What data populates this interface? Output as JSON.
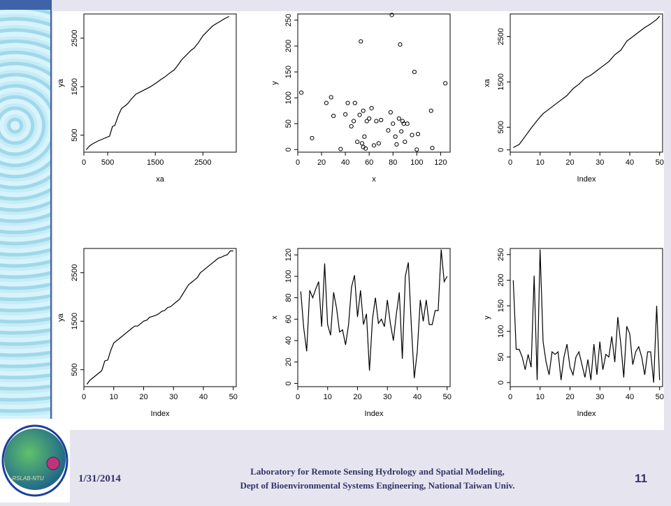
{
  "footer": {
    "date": "1/31/2014",
    "lab_line1": "Laboratory for Remote Sensing Hydrology and Spatial Modeling,",
    "lab_line2": "Dept of Bioenvironmental Systems Engineering, National Taiwan Univ.",
    "page_number": "11",
    "logo_text": "RSLAB-NTU"
  },
  "colors": {
    "logo_outer": "#1a3f9e",
    "logo_inner": "#2fa86a",
    "logo_dot": "#c0327e",
    "text": "#333366"
  },
  "chart_data": [
    {
      "type": "line",
      "xlabel": "xa",
      "ylabel": "ya",
      "xlim": [
        0,
        3200
      ],
      "ylim": [
        150,
        3000
      ],
      "xticks": [
        0,
        500,
        1500,
        2500
      ],
      "yticks": [
        500,
        1500,
        2500
      ],
      "x": [
        50,
        120,
        200,
        300,
        420,
        540,
        600,
        650,
        720,
        790,
        860,
        920,
        1000,
        1100,
        1200,
        1300,
        1400,
        1520,
        1620,
        1700,
        1800,
        1900,
        1980,
        2050,
        2150,
        2250,
        2320,
        2400,
        2500,
        2600,
        2700,
        2780,
        2870,
        2950,
        3050
      ],
      "y": [
        200,
        280,
        330,
        380,
        430,
        480,
        680,
        700,
        900,
        1050,
        1100,
        1150,
        1250,
        1350,
        1400,
        1450,
        1500,
        1580,
        1650,
        1700,
        1780,
        1850,
        1950,
        2050,
        2150,
        2250,
        2300,
        2400,
        2550,
        2650,
        2750,
        2800,
        2850,
        2900,
        2950
      ]
    },
    {
      "type": "scatter",
      "xlabel": "x",
      "ylabel": "y",
      "xlim": [
        0,
        128
      ],
      "ylim": [
        -5,
        262
      ],
      "xticks": [
        0,
        20,
        40,
        60,
        80,
        100,
        120
      ],
      "yticks": [
        0,
        50,
        100,
        150,
        200,
        250
      ],
      "x": [
        3,
        12,
        24,
        28,
        30,
        36,
        40,
        42,
        45,
        47,
        48,
        50,
        52,
        53,
        54,
        55,
        55,
        56,
        57,
        58,
        60,
        62,
        64,
        66,
        68,
        70,
        76,
        78,
        79,
        80,
        82,
        83,
        85,
        86,
        87,
        88,
        89,
        90,
        92,
        96,
        98,
        100,
        101,
        112,
        113,
        124
      ],
      "y": [
        110,
        22,
        90,
        101,
        65,
        1,
        68,
        90,
        45,
        55,
        90,
        15,
        67,
        209,
        12,
        5,
        75,
        25,
        2,
        55,
        60,
        80,
        8,
        55,
        12,
        57,
        37,
        72,
        260,
        50,
        25,
        10,
        60,
        203,
        35,
        55,
        50,
        15,
        50,
        28,
        150,
        0,
        30,
        75,
        3,
        128
      ]
    },
    {
      "type": "line",
      "xlabel": "Index",
      "ylabel": "xa",
      "xlim": [
        0,
        51
      ],
      "ylim": [
        -50,
        3000
      ],
      "xticks": [
        0,
        10,
        20,
        30,
        40,
        50
      ],
      "yticks": [
        0,
        500,
        1500,
        2500
      ],
      "x": [
        1,
        3,
        5,
        7,
        9,
        11,
        13,
        15,
        17,
        19,
        21,
        23,
        25,
        27,
        29,
        31,
        33,
        35,
        37,
        39,
        41,
        43,
        45,
        47,
        49,
        50
      ],
      "y": [
        50,
        120,
        300,
        480,
        650,
        800,
        900,
        1000,
        1100,
        1200,
        1350,
        1450,
        1580,
        1650,
        1750,
        1850,
        1950,
        2100,
        2200,
        2400,
        2500,
        2600,
        2700,
        2780,
        2880,
        2950
      ]
    },
    {
      "type": "line",
      "xlabel": "Index",
      "ylabel": "ya",
      "xlim": [
        0,
        51
      ],
      "ylim": [
        150,
        3000
      ],
      "xticks": [
        0,
        10,
        20,
        30,
        40,
        50
      ],
      "yticks": [
        500,
        1500,
        2500
      ],
      "x": [
        1,
        2,
        3,
        4,
        5,
        6,
        7,
        8,
        9,
        10,
        11,
        12,
        13,
        14,
        15,
        16,
        17,
        18,
        19,
        20,
        21,
        22,
        23,
        24,
        25,
        26,
        27,
        28,
        29,
        30,
        31,
        32,
        33,
        34,
        35,
        36,
        37,
        38,
        39,
        40,
        41,
        42,
        43,
        44,
        45,
        46,
        47,
        48,
        49,
        50
      ],
      "y": [
        200,
        280,
        330,
        380,
        430,
        480,
        680,
        700,
        900,
        1050,
        1100,
        1150,
        1200,
        1250,
        1300,
        1350,
        1400,
        1400,
        1450,
        1500,
        1520,
        1580,
        1600,
        1620,
        1650,
        1700,
        1720,
        1780,
        1800,
        1850,
        1900,
        1950,
        2050,
        2150,
        2250,
        2300,
        2350,
        2400,
        2500,
        2550,
        2600,
        2650,
        2700,
        2750,
        2800,
        2820,
        2850,
        2870,
        2950,
        2950
      ]
    },
    {
      "type": "line",
      "xlabel": "Index",
      "ylabel": "x",
      "xlim": [
        0,
        51
      ],
      "ylim": [
        -3,
        126
      ],
      "xticks": [
        0,
        10,
        20,
        30,
        40,
        50
      ],
      "yticks": [
        0,
        20,
        40,
        60,
        80,
        100,
        120
      ],
      "x": [
        1,
        2,
        3,
        4,
        5,
        6,
        7,
        8,
        9,
        10,
        11,
        12,
        13,
        14,
        15,
        16,
        17,
        18,
        19,
        20,
        21,
        22,
        23,
        24,
        25,
        26,
        27,
        28,
        29,
        30,
        31,
        32,
        33,
        34,
        35,
        36,
        37,
        38,
        39,
        40,
        41,
        42,
        43,
        44,
        45,
        46,
        47,
        48,
        49,
        50
      ],
      "y": [
        86,
        52,
        30,
        87,
        80,
        88,
        95,
        53,
        112,
        55,
        45,
        85,
        70,
        48,
        50,
        36,
        55,
        90,
        101,
        62,
        87,
        55,
        65,
        12,
        60,
        80,
        56,
        60,
        53,
        78,
        56,
        40,
        65,
        85,
        23,
        100,
        113,
        55,
        5,
        30,
        78,
        58,
        78,
        55,
        55,
        68,
        68,
        125,
        95,
        100
      ]
    },
    {
      "type": "line",
      "xlabel": "Index",
      "ylabel": "y",
      "xlim": [
        0,
        51
      ],
      "ylim": [
        -8,
        262
      ],
      "xticks": [
        0,
        10,
        20,
        30,
        40,
        50
      ],
      "yticks": [
        0,
        50,
        100,
        150,
        200,
        250
      ],
      "x": [
        1,
        2,
        3,
        4,
        5,
        6,
        7,
        8,
        9,
        10,
        11,
        12,
        13,
        14,
        15,
        16,
        17,
        18,
        19,
        20,
        21,
        22,
        23,
        24,
        25,
        26,
        27,
        28,
        29,
        30,
        31,
        32,
        33,
        34,
        35,
        36,
        37,
        38,
        39,
        40,
        41,
        42,
        43,
        44,
        45,
        46,
        47,
        48,
        49,
        50
      ],
      "y": [
        200,
        65,
        65,
        50,
        25,
        55,
        30,
        209,
        5,
        260,
        80,
        40,
        15,
        60,
        55,
        60,
        5,
        50,
        75,
        30,
        15,
        50,
        60,
        35,
        10,
        45,
        5,
        75,
        15,
        80,
        25,
        55,
        50,
        90,
        40,
        128,
        75,
        10,
        110,
        95,
        35,
        60,
        70,
        50,
        15,
        60,
        60,
        0,
        150,
        5
      ]
    }
  ]
}
